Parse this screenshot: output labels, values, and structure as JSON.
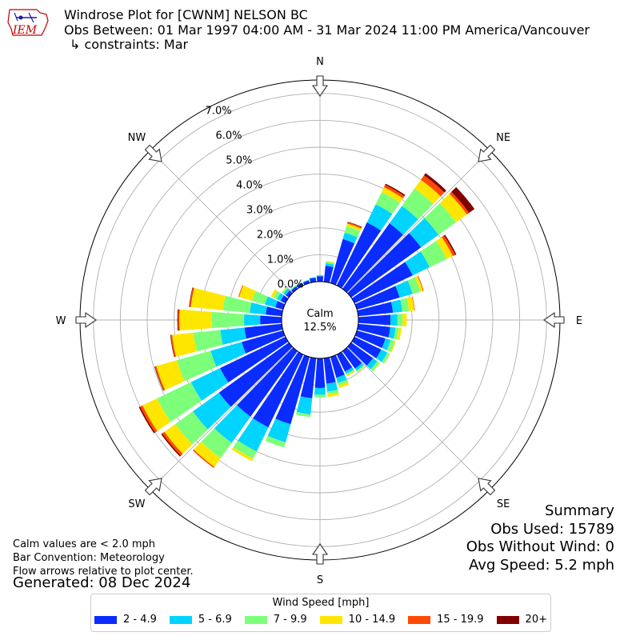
{
  "header": {
    "title_line1": "Windrose Plot for [CWNM] NELSON  BC",
    "title_line2": "Obs Between: 01 Mar 1997 04:00 AM - 31 Mar 2024 11:00 PM America/Vancouver",
    "title_line3": "↳ constraints: Mar",
    "logo_text": "IEM"
  },
  "footer": {
    "line1": "Calm values are < 2.0 mph",
    "line2": "Bar Convention: Meteorology",
    "line3": "Flow arrows relative to plot center.",
    "generated": "Generated: 08 Dec 2024"
  },
  "summary": {
    "title": "Summary",
    "obs_used": "Obs Used: 15789",
    "obs_without_wind": "Obs Without Wind: 0",
    "avg_speed": "Avg Speed: 5.2 mph"
  },
  "calm": {
    "label": "Calm",
    "value": "12.5%"
  },
  "directions": [
    "N",
    "NE",
    "E",
    "SE",
    "S",
    "SW",
    "W",
    "NW"
  ],
  "ring_labels": [
    "0.0%",
    "1.0%",
    "2.0%",
    "3.0%",
    "4.0%",
    "5.0%",
    "6.0%",
    "7.0%"
  ],
  "legend": {
    "title": "Wind Speed [mph]",
    "items": [
      "2 - 4.9",
      "5 - 6.9",
      "7 - 9.9",
      "10 - 14.9",
      "15 - 19.9",
      "20+"
    ]
  },
  "colors": {
    "bins": [
      "#0a2cff",
      "#00d4ff",
      "#7dff7a",
      "#ffe600",
      "#ff4a00",
      "#800000"
    ],
    "grid": "#b0b0b0"
  },
  "chart_data": {
    "type": "windrose",
    "units": "percent of observations",
    "calm_percent": 12.5,
    "rmax_percent": 7.5,
    "ring_ticks": [
      0,
      1,
      2,
      3,
      4,
      5,
      6,
      7
    ],
    "speed_bins": [
      "2 - 4.9",
      "5 - 6.9",
      "7 - 9.9",
      "10 - 14.9",
      "15 - 19.9",
      "20+"
    ],
    "sectors": [
      {
        "dir": 0,
        "values": [
          0.2,
          0.03,
          0.02,
          0.0,
          0.0,
          0.0
        ]
      },
      {
        "dir": 10,
        "values": [
          0.6,
          0.1,
          0.05,
          0.03,
          0.0,
          0.0
        ]
      },
      {
        "dir": 20,
        "values": [
          1.7,
          0.25,
          0.25,
          0.1,
          0.05,
          0.02
        ]
      },
      {
        "dir": 30,
        "values": [
          2.6,
          0.75,
          0.5,
          0.2,
          0.1,
          0.05
        ]
      },
      {
        "dir": 40,
        "values": [
          3.0,
          0.8,
          0.8,
          0.4,
          0.2,
          0.1
        ]
      },
      {
        "dir": 50,
        "values": [
          3.2,
          0.8,
          0.8,
          0.5,
          0.1,
          0.25
        ]
      },
      {
        "dir": 60,
        "values": [
          2.4,
          0.7,
          0.7,
          0.25,
          0.1,
          0.05
        ]
      },
      {
        "dir": 70,
        "values": [
          1.65,
          0.5,
          0.3,
          0.1,
          0.03,
          0.0
        ]
      },
      {
        "dir": 80,
        "values": [
          1.3,
          0.35,
          0.25,
          0.2,
          0.02,
          0.0
        ]
      },
      {
        "dir": 90,
        "values": [
          1.2,
          0.25,
          0.2,
          0.15,
          0.0,
          0.0
        ]
      },
      {
        "dir": 100,
        "values": [
          1.2,
          0.2,
          0.12,
          0.1,
          0.0,
          0.0
        ]
      },
      {
        "dir": 110,
        "values": [
          1.1,
          0.2,
          0.15,
          0.05,
          0.0,
          0.0
        ]
      },
      {
        "dir": 120,
        "values": [
          1.1,
          0.25,
          0.1,
          0.02,
          0.0,
          0.0
        ]
      },
      {
        "dir": 130,
        "values": [
          1.0,
          0.2,
          0.1,
          0.02,
          0.0,
          0.0
        ]
      },
      {
        "dir": 140,
        "values": [
          0.8,
          0.1,
          0.05,
          0.02,
          0.0,
          0.0
        ]
      },
      {
        "dir": 150,
        "values": [
          0.7,
          0.1,
          0.05,
          0.05,
          0.0,
          0.0
        ]
      },
      {
        "dir": 160,
        "values": [
          0.8,
          0.2,
          0.1,
          0.1,
          0.0,
          0.0
        ]
      },
      {
        "dir": 170,
        "values": [
          0.95,
          0.3,
          0.1,
          0.1,
          0.0,
          0.0
        ]
      },
      {
        "dir": 180,
        "values": [
          1.1,
          0.25,
          0.1,
          0.0,
          0.0,
          0.0
        ]
      },
      {
        "dir": 190,
        "values": [
          1.5,
          0.6,
          0.1,
          0.0,
          0.0,
          0.0
        ]
      },
      {
        "dir": 200,
        "values": [
          2.6,
          0.7,
          0.2,
          0.0,
          0.0,
          0.0
        ]
      },
      {
        "dir": 210,
        "values": [
          3.0,
          1.0,
          0.3,
          0.1,
          0.0,
          0.0
        ]
      },
      {
        "dir": 220,
        "values": [
          3.0,
          1.2,
          0.7,
          0.4,
          0.05,
          0.0
        ]
      },
      {
        "dir": 230,
        "values": [
          3.2,
          1.2,
          0.8,
          0.5,
          0.1,
          0.05
        ]
      },
      {
        "dir": 240,
        "values": [
          2.7,
          1.2,
          1.4,
          0.6,
          0.1,
          0.05
        ]
      },
      {
        "dir": 250,
        "values": [
          1.6,
          1.2,
          1.3,
          0.8,
          0.05,
          0.02
        ]
      },
      {
        "dir": 260,
        "values": [
          1.4,
          0.9,
          1.0,
          0.8,
          0.05,
          0.02
        ]
      },
      {
        "dir": 270,
        "values": [
          0.8,
          0.6,
          1.2,
          1.2,
          0.05,
          0.03
        ]
      },
      {
        "dir": 280,
        "values": [
          0.6,
          0.6,
          1.0,
          1.2,
          0.05,
          0.02
        ]
      },
      {
        "dir": 290,
        "values": [
          0.3,
          0.4,
          0.5,
          0.5,
          0.03,
          0.0
        ]
      },
      {
        "dir": 300,
        "values": [
          0.2,
          0.15,
          0.15,
          0.1,
          0.0,
          0.0
        ]
      },
      {
        "dir": 310,
        "values": [
          0.15,
          0.1,
          0.05,
          0.03,
          0.0,
          0.0
        ]
      },
      {
        "dir": 320,
        "values": [
          0.1,
          0.03,
          0.02,
          0.0,
          0.0,
          0.0
        ]
      },
      {
        "dir": 330,
        "values": [
          0.1,
          0.03,
          0.01,
          0.0,
          0.0,
          0.0
        ]
      },
      {
        "dir": 340,
        "values": [
          0.1,
          0.02,
          0.0,
          0.0,
          0.0,
          0.0
        ]
      },
      {
        "dir": 350,
        "values": [
          0.15,
          0.03,
          0.0,
          0.0,
          0.0,
          0.0
        ]
      }
    ]
  }
}
